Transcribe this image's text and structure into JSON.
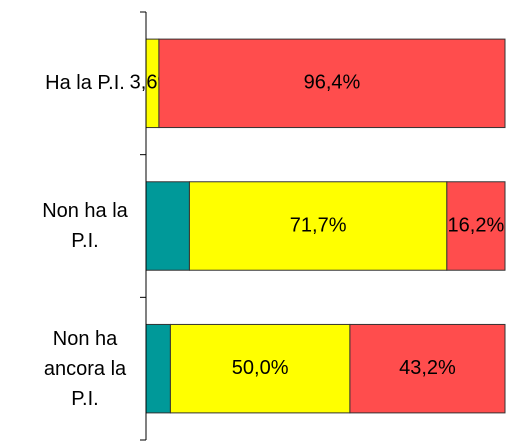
{
  "chart_data": {
    "type": "stacked-bar-horizontal",
    "categories": [
      "Ha la P.I.",
      "Non ha la P.I.",
      "Non ha ancora la P.I."
    ],
    "xlim": [
      0,
      100
    ],
    "series": [
      {
        "color": "#009999",
        "values": [
          0,
          12.1,
          6.8
        ],
        "value_labels": [
          null,
          null,
          null
        ]
      },
      {
        "color": "#ffff00",
        "values": [
          3.6,
          71.7,
          50.0
        ],
        "value_labels": [
          "3,6%",
          "71,7%",
          "50,0%"
        ]
      },
      {
        "color": "#ff4d4d",
        "values": [
          96.4,
          16.2,
          43.2
        ],
        "value_labels": [
          "96,4%",
          "16,2%",
          "43,2%"
        ]
      }
    ]
  }
}
